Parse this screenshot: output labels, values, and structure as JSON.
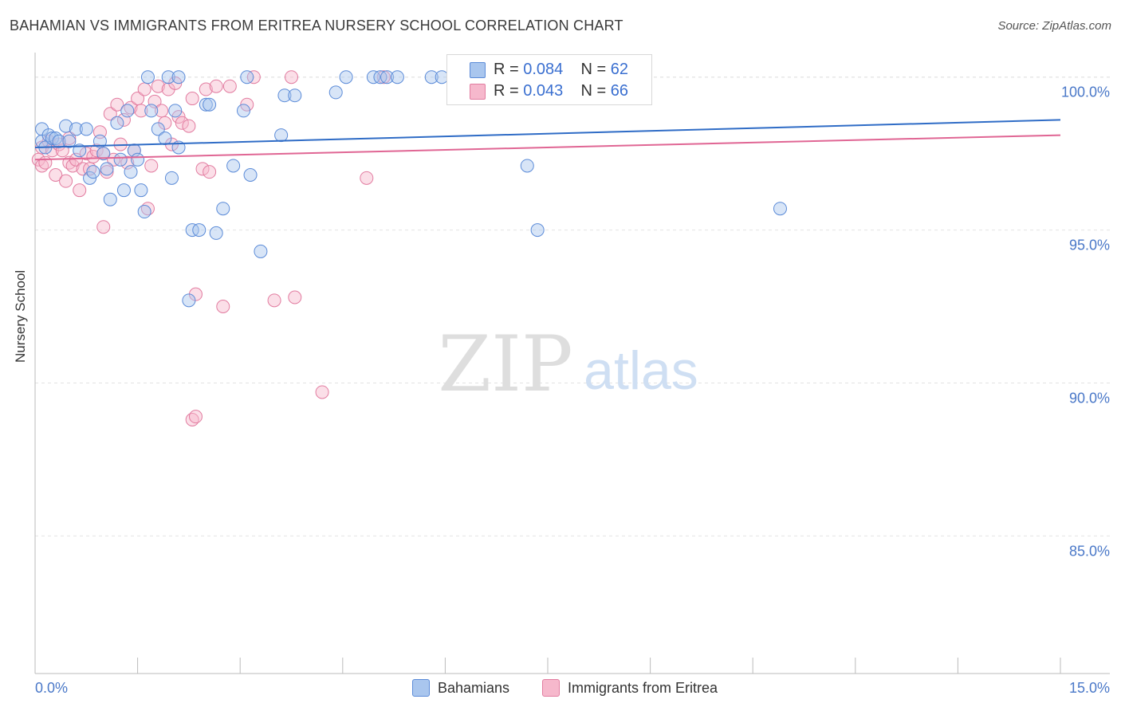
{
  "title": "BAHAMIAN VS IMMIGRANTS FROM ERITREA NURSERY SCHOOL CORRELATION CHART",
  "source": "Source: ZipAtlas.com",
  "watermark": {
    "zip": "ZIP",
    "atlas": "atlas"
  },
  "legend": {
    "rows": [
      {
        "r_label": "R = ",
        "r_value": "0.084",
        "n_label": "N = ",
        "n_value": "62"
      },
      {
        "r_label": "R = ",
        "r_value": "0.043",
        "n_label": "N = ",
        "n_value": "66"
      }
    ]
  },
  "bottom_legend": {
    "series1": "Bahamians",
    "series2": "Immigrants from Eritrea"
  },
  "colors": {
    "blue_fill": "#a9c6ee",
    "blue_stroke": "#5b8bd8",
    "blue_line": "#2f6cc6",
    "pink_fill": "#f6b8cc",
    "pink_stroke": "#e27ca0",
    "pink_line": "#e06694",
    "axis_text": "#4a78c8",
    "grid": "#e3e3e3"
  },
  "chart_data": {
    "type": "scatter",
    "title": "BAHAMIAN VS IMMIGRANTS FROM ERITREA NURSERY SCHOOL CORRELATION CHART",
    "xlabel": "",
    "ylabel": "Nursery School",
    "xlim": [
      0,
      15
    ],
    "ylim": [
      80.5,
      100.8
    ],
    "x_tick_labels": [
      "0.0%",
      "15.0%"
    ],
    "y_ticks": [
      100,
      95,
      90,
      85
    ],
    "y_tick_labels": [
      "100.0%",
      "95.0%",
      "90.0%",
      "85.0%"
    ],
    "grid": true,
    "series": [
      {
        "name": "Bahamians",
        "r": 0.084,
        "n": 62,
        "trend": [
          [
            0.0,
            97.7
          ],
          [
            15.0,
            98.6
          ]
        ],
        "points": [
          [
            0.1,
            98.3
          ],
          [
            0.1,
            97.9
          ],
          [
            0.15,
            97.7
          ],
          [
            0.2,
            98.1
          ],
          [
            0.25,
            98.0
          ],
          [
            0.3,
            98.0
          ],
          [
            0.35,
            97.9
          ],
          [
            0.45,
            98.4
          ],
          [
            0.5,
            97.9
          ],
          [
            0.6,
            98.3
          ],
          [
            0.65,
            97.6
          ],
          [
            0.75,
            98.3
          ],
          [
            0.8,
            96.7
          ],
          [
            0.85,
            96.9
          ],
          [
            0.95,
            97.9
          ],
          [
            1.0,
            97.5
          ],
          [
            1.05,
            97.0
          ],
          [
            1.1,
            96.0
          ],
          [
            1.2,
            98.5
          ],
          [
            1.25,
            97.3
          ],
          [
            1.3,
            96.3
          ],
          [
            1.35,
            98.9
          ],
          [
            1.4,
            96.9
          ],
          [
            1.45,
            97.6
          ],
          [
            1.5,
            97.3
          ],
          [
            1.55,
            96.3
          ],
          [
            1.6,
            95.6
          ],
          [
            1.65,
            100.0
          ],
          [
            1.7,
            98.9
          ],
          [
            1.8,
            98.3
          ],
          [
            1.9,
            98.0
          ],
          [
            1.95,
            100.0
          ],
          [
            2.0,
            96.7
          ],
          [
            2.05,
            98.9
          ],
          [
            2.1,
            100.0
          ],
          [
            2.1,
            97.7
          ],
          [
            2.25,
            92.7
          ],
          [
            2.3,
            95.0
          ],
          [
            2.4,
            95.0
          ],
          [
            2.5,
            99.1
          ],
          [
            2.55,
            99.1
          ],
          [
            2.65,
            94.9
          ],
          [
            2.75,
            95.7
          ],
          [
            2.9,
            97.1
          ],
          [
            3.05,
            98.9
          ],
          [
            3.1,
            100.0
          ],
          [
            3.15,
            96.8
          ],
          [
            3.3,
            94.3
          ],
          [
            3.6,
            98.1
          ],
          [
            3.65,
            99.4
          ],
          [
            3.8,
            99.4
          ],
          [
            4.4,
            99.5
          ],
          [
            4.55,
            100.0
          ],
          [
            4.95,
            100.0
          ],
          [
            5.05,
            100.0
          ],
          [
            5.15,
            100.0
          ],
          [
            5.3,
            100.0
          ],
          [
            5.8,
            100.0
          ],
          [
            5.95,
            100.0
          ],
          [
            7.2,
            97.1
          ],
          [
            7.35,
            95.0
          ],
          [
            10.9,
            95.7
          ]
        ]
      },
      {
        "name": "Immigrants from Eritrea",
        "r": 0.043,
        "n": 66,
        "trend": [
          [
            0.0,
            97.3
          ],
          [
            15.0,
            98.1
          ]
        ],
        "points": [
          [
            0.05,
            97.3
          ],
          [
            0.1,
            97.7
          ],
          [
            0.1,
            97.1
          ],
          [
            0.15,
            97.2
          ],
          [
            0.2,
            97.9
          ],
          [
            0.25,
            97.6
          ],
          [
            0.3,
            96.8
          ],
          [
            0.35,
            97.8
          ],
          [
            0.4,
            97.6
          ],
          [
            0.45,
            96.6
          ],
          [
            0.5,
            97.2
          ],
          [
            0.5,
            98.0
          ],
          [
            0.55,
            97.1
          ],
          [
            0.6,
            97.3
          ],
          [
            0.65,
            96.3
          ],
          [
            0.7,
            97.0
          ],
          [
            0.75,
            97.5
          ],
          [
            0.8,
            97.0
          ],
          [
            0.85,
            97.4
          ],
          [
            0.9,
            97.6
          ],
          [
            0.95,
            98.2
          ],
          [
            1.0,
            97.5
          ],
          [
            1.0,
            95.1
          ],
          [
            1.05,
            96.9
          ],
          [
            1.1,
            98.8
          ],
          [
            1.15,
            97.3
          ],
          [
            1.2,
            99.1
          ],
          [
            1.25,
            97.8
          ],
          [
            1.3,
            98.6
          ],
          [
            1.35,
            97.2
          ],
          [
            1.4,
            99.0
          ],
          [
            1.45,
            97.6
          ],
          [
            1.5,
            99.3
          ],
          [
            1.55,
            98.9
          ],
          [
            1.6,
            99.6
          ],
          [
            1.65,
            95.7
          ],
          [
            1.7,
            97.1
          ],
          [
            1.75,
            99.2
          ],
          [
            1.8,
            99.7
          ],
          [
            1.85,
            98.9
          ],
          [
            1.9,
            98.5
          ],
          [
            1.95,
            99.6
          ],
          [
            2.0,
            97.8
          ],
          [
            2.05,
            99.8
          ],
          [
            2.1,
            98.7
          ],
          [
            2.15,
            98.5
          ],
          [
            2.25,
            98.4
          ],
          [
            2.3,
            99.3
          ],
          [
            2.3,
            88.8
          ],
          [
            2.35,
            88.9
          ],
          [
            2.35,
            92.9
          ],
          [
            2.45,
            97.0
          ],
          [
            2.5,
            99.6
          ],
          [
            2.55,
            96.9
          ],
          [
            2.65,
            99.7
          ],
          [
            2.75,
            92.5
          ],
          [
            2.85,
            99.7
          ],
          [
            3.1,
            99.1
          ],
          [
            3.2,
            100.0
          ],
          [
            3.5,
            92.7
          ],
          [
            3.75,
            100.0
          ],
          [
            3.8,
            92.8
          ],
          [
            4.2,
            89.7
          ],
          [
            4.85,
            96.7
          ],
          [
            5.1,
            100.0
          ],
          [
            6.5,
            100.0
          ]
        ]
      }
    ]
  }
}
